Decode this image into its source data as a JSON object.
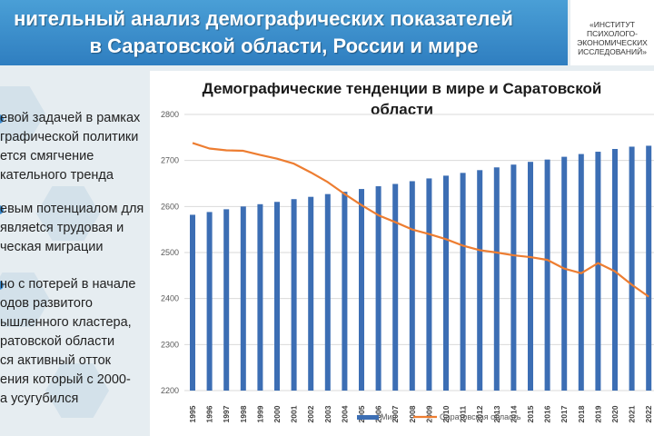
{
  "header": {
    "title_line1": "нительный анализ демографических показателей",
    "title_line2": "в Саратовской области, России и мире"
  },
  "logo": {
    "line1": "«ИНСТИТУТ",
    "line2": "ПСИХОЛОГО-",
    "line3": "ЭКОНОМИЧЕСКИХ",
    "line4": "ИССЛЕДОВАНИЙ»"
  },
  "left_text": {
    "p1": [
      "евой задачей в рамках",
      "графической политики",
      "ется смягчение",
      "кательного тренда"
    ],
    "p2": [
      "евым потенциалом для",
      "являеtся трудовая и",
      "ческая миграции"
    ],
    "p3": [
      "но с потерей в начале",
      "одов развитого",
      "ышленного кластера,",
      "ратовской области",
      "ся активный отток",
      "ения который с 2000-",
      "а усугубился"
    ]
  },
  "colors": {
    "bar": "#3c6eb4",
    "line": "#ed7d31",
    "header": "#3b8fcf"
  },
  "chart_data": {
    "type": "bar+line",
    "title_line1": "Демографические тенденции в мире и Саратовской",
    "title_line2": "области",
    "categories": [
      "1995",
      "1996",
      "1997",
      "1998",
      "1999",
      "2000",
      "2001",
      "2002",
      "2003",
      "2004",
      "2005",
      "2006",
      "2007",
      "2008",
      "2009",
      "2010",
      "2011",
      "2012",
      "2013",
      "2014",
      "2015",
      "2016",
      "2017",
      "2018",
      "2019",
      "2020",
      "2021",
      "2022"
    ],
    "ylim": [
      2200,
      2800
    ],
    "yticks": [
      2200,
      2300,
      2400,
      2500,
      2600,
      2700,
      2800
    ],
    "grid": true,
    "legend_position": "bottom",
    "series": [
      {
        "name": "Мир",
        "kind": "bar",
        "values": [
          2582,
          2588,
          2594,
          2600,
          2605,
          2610,
          2616,
          2621,
          2627,
          2632,
          2638,
          2644,
          2649,
          2655,
          2661,
          2667,
          2673,
          2679,
          2685,
          2691,
          2697,
          2702,
          2708,
          2714,
          2719,
          2725,
          2730,
          2732
        ]
      },
      {
        "name": "Саратовская область",
        "kind": "line",
        "values": [
          2738,
          2726,
          2722,
          2721,
          2712,
          2704,
          2693,
          2674,
          2653,
          2627,
          2603,
          2581,
          2566,
          2550,
          2540,
          2529,
          2515,
          2505,
          2500,
          2494,
          2490,
          2484,
          2465,
          2455,
          2477,
          2459,
          2430,
          2404
        ]
      }
    ]
  }
}
